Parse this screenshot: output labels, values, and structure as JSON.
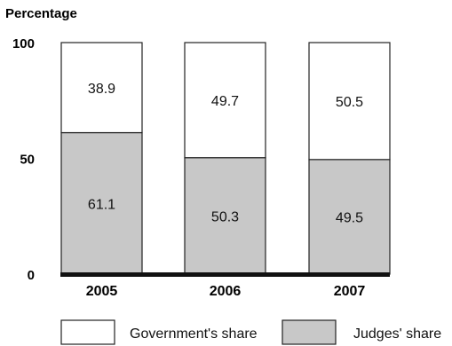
{
  "chart_data": {
    "type": "bar",
    "stacked": true,
    "title": "",
    "xlabel": "",
    "ylabel": "Percentage",
    "ylim": [
      0,
      100
    ],
    "yticks": [
      "0",
      "50",
      "100"
    ],
    "categories": [
      "2005",
      "2006",
      "2007"
    ],
    "series": [
      {
        "name": "Judges' share",
        "values": [
          61.1,
          50.3,
          49.5
        ],
        "labels": [
          "61.1",
          "50.3",
          "49.5"
        ],
        "color": "#c8c8c8"
      },
      {
        "name": "Government's share",
        "values": [
          38.9,
          49.7,
          50.5
        ],
        "labels": [
          "38.9",
          "49.7",
          "50.5"
        ],
        "color": "#ffffff"
      }
    ],
    "legend": {
      "placement": "bottom",
      "order": [
        "Government's share",
        "Judges' share"
      ]
    },
    "grid": false
  }
}
